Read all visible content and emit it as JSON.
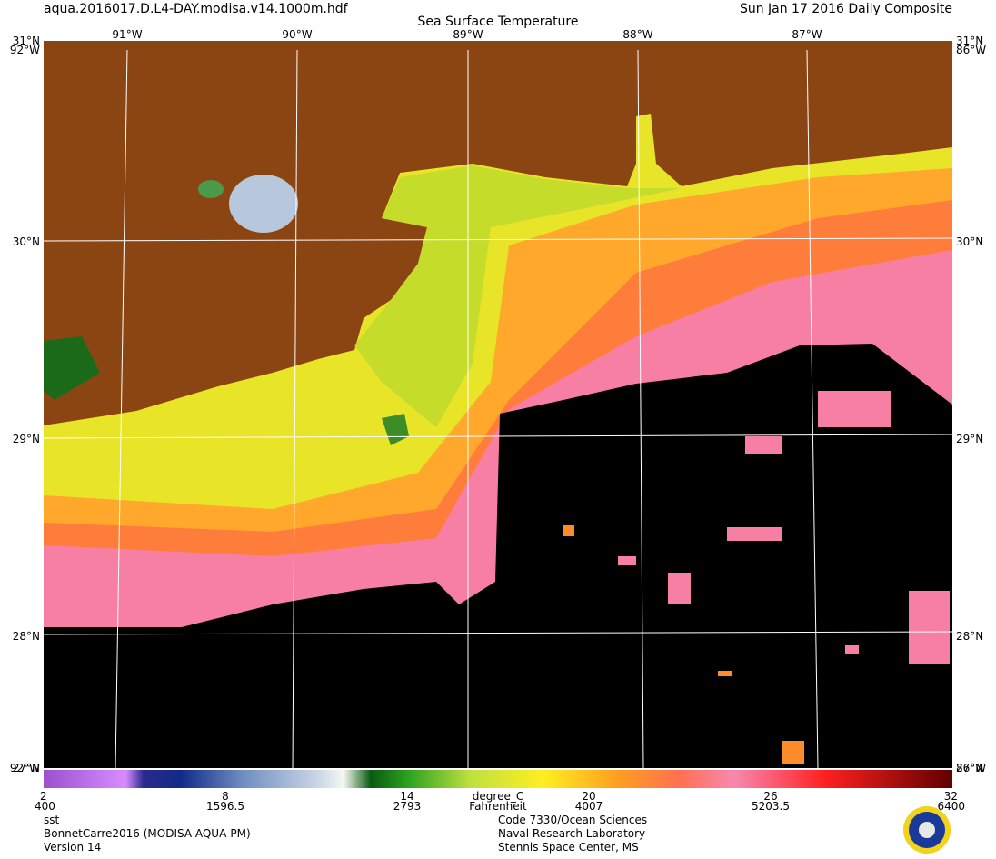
{
  "header": {
    "filename": "aqua.2016017.D.L4-DAY.modisa.v14.1000m.hdf",
    "date": "Sun Jan 17 2016 Daily Composite",
    "title": "Sea Surface Temperature"
  },
  "map": {
    "lat_labels": [
      "31°N",
      "30°N",
      "29°N",
      "28°N",
      "27°N"
    ],
    "lon_labels": [
      "92°W",
      "91°W",
      "90°W",
      "89°W",
      "88°W",
      "87°W",
      "86°W"
    ]
  },
  "colorbar": {
    "unit": "degree_C",
    "unit2": "Fahrenheit",
    "labels": [
      "2",
      "8",
      "14",
      "20",
      "26",
      "32"
    ],
    "labels2": [
      "400",
      "1596.5",
      "2793",
      "4007",
      "5203.5",
      "6400"
    ]
  },
  "footer": {
    "left": [
      "sst",
      "BonnetCarre2016 (MODISA-AQUA-PM)",
      "Version 14"
    ],
    "right": [
      "Code 7330/Ocean Sciences",
      "Naval Research Laboratory",
      "Stennis Space Center, MS"
    ]
  }
}
